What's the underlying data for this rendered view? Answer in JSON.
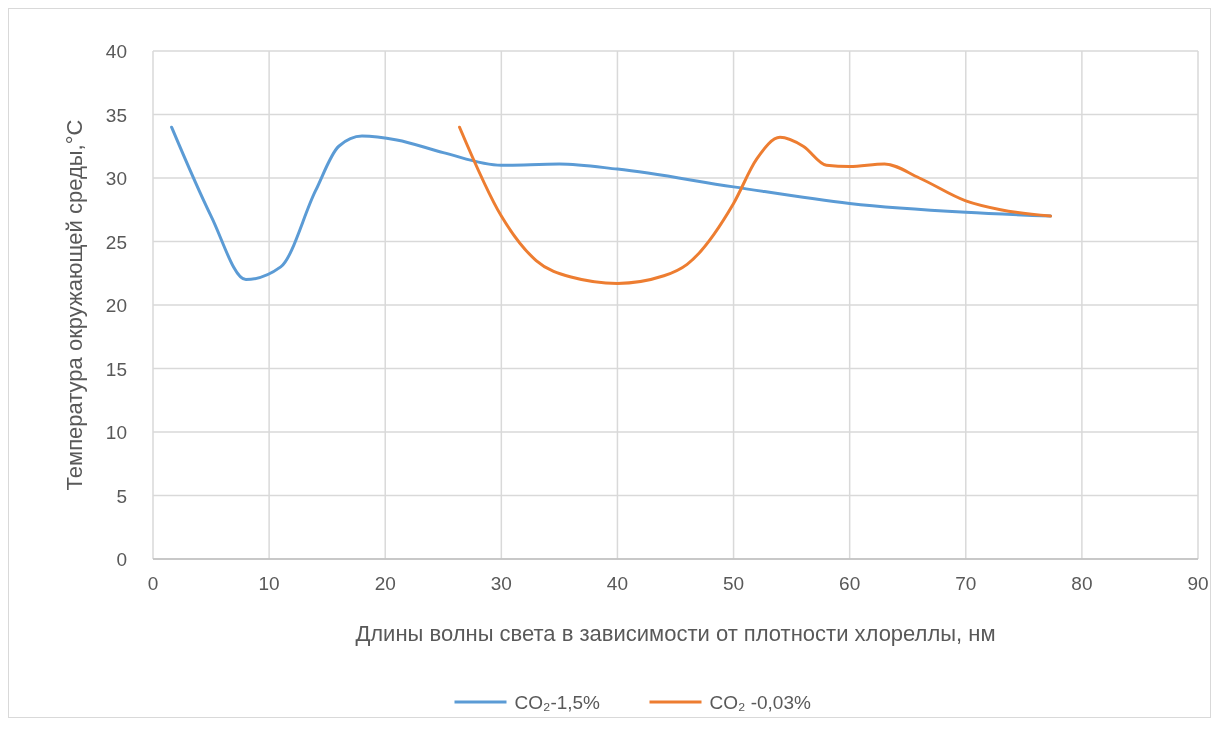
{
  "chart_data": {
    "type": "line",
    "xlabel": "Длины волны света в зависимости от плотности хлореллы, нм",
    "ylabel": "Температура окружающей среды,°C",
    "xlim": [
      0,
      90
    ],
    "xticks": [
      0,
      10,
      20,
      30,
      40,
      50,
      60,
      70,
      80,
      90
    ],
    "ylim": [
      0,
      40
    ],
    "yticks": [
      0,
      5,
      10,
      15,
      20,
      25,
      30,
      35,
      40
    ],
    "grid": true,
    "legend": "bottom",
    "series": [
      {
        "name": "CO₂-1,5%",
        "color": "#5b9bd5",
        "x": [
          1.6,
          5,
          8,
          11,
          14,
          16,
          18,
          21,
          25,
          30,
          35,
          40,
          50,
          60,
          70,
          77.3
        ],
        "values": [
          34,
          27,
          22,
          23,
          29,
          32.5,
          33.3,
          33,
          32,
          31,
          31.1,
          30.7,
          29.3,
          28,
          27.3,
          27
        ]
      },
      {
        "name": "CO₂ -0,03%",
        "color": "#ed7d31",
        "x": [
          26.4,
          30,
          33,
          36,
          40,
          44,
          46,
          50,
          52,
          54,
          56,
          58,
          60,
          63,
          66,
          70,
          73,
          77.3
        ],
        "values": [
          34,
          27,
          23.5,
          22.2,
          21.7,
          22.3,
          23.2,
          28,
          31.5,
          33.2,
          32.5,
          31,
          30.9,
          31.1,
          30,
          28.2,
          27.5,
          27
        ]
      }
    ]
  }
}
